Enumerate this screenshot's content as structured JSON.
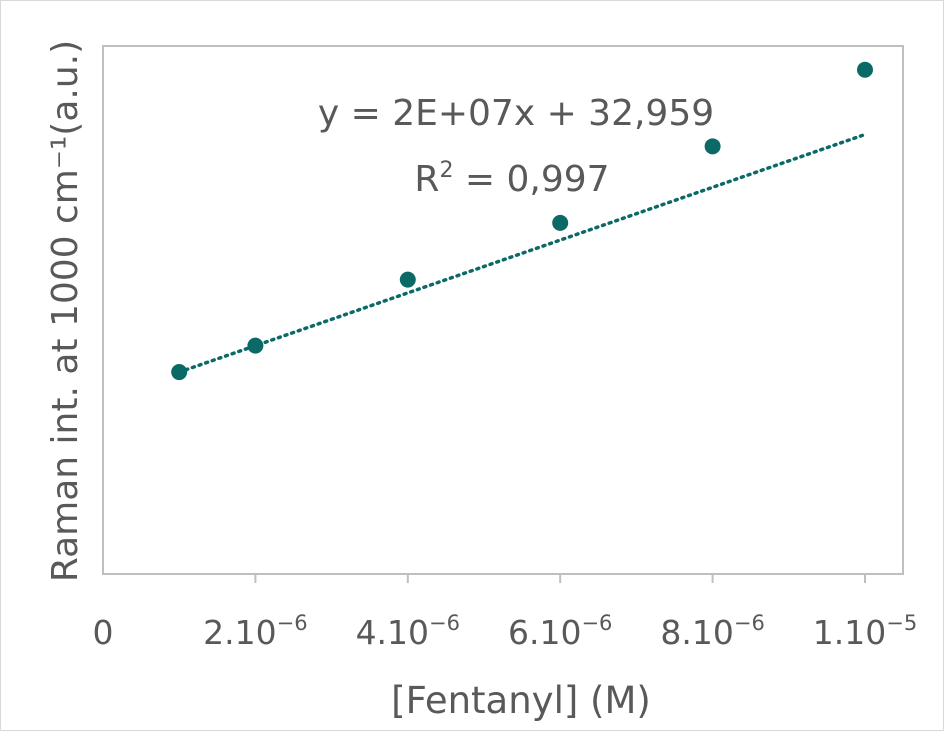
{
  "chart_data": {
    "type": "scatter",
    "xlabel": "[Fentanyl] (M)",
    "ylabel": "Raman int. at 1000 cm⁻¹(a.u.)",
    "xlim": [
      0,
      1.05e-05
    ],
    "x_ticks": [
      {
        "value": 0,
        "base": "0",
        "exp": ""
      },
      {
        "value": 2e-06,
        "base": "2.10",
        "exp": "−6"
      },
      {
        "value": 4e-06,
        "base": "4.10",
        "exp": "−6"
      },
      {
        "value": 6e-06,
        "base": "6.10",
        "exp": "−6"
      },
      {
        "value": 8e-06,
        "base": "8.10",
        "exp": "−6"
      },
      {
        "value": 1e-05,
        "base": "1.10",
        "exp": "−5"
      }
    ],
    "grid": false,
    "y_tick_labels": false,
    "series": [
      {
        "color": "#0b6a66",
        "x": [
          1e-06,
          2e-06,
          4e-06,
          6e-06,
          8e-06,
          1e-05
        ],
        "y": [
          53,
          73,
          123,
          166,
          224,
          282
        ]
      }
    ],
    "trendline": {
      "style": "dotted",
      "slope": 20000000,
      "intercept": 32.959,
      "equation": "y = 2E+07x + 32,959",
      "r2_prefix": "R",
      "r2_exp": "2",
      "r2_value": " = 0,997"
    },
    "ylim": [
      -100,
      300
    ]
  }
}
